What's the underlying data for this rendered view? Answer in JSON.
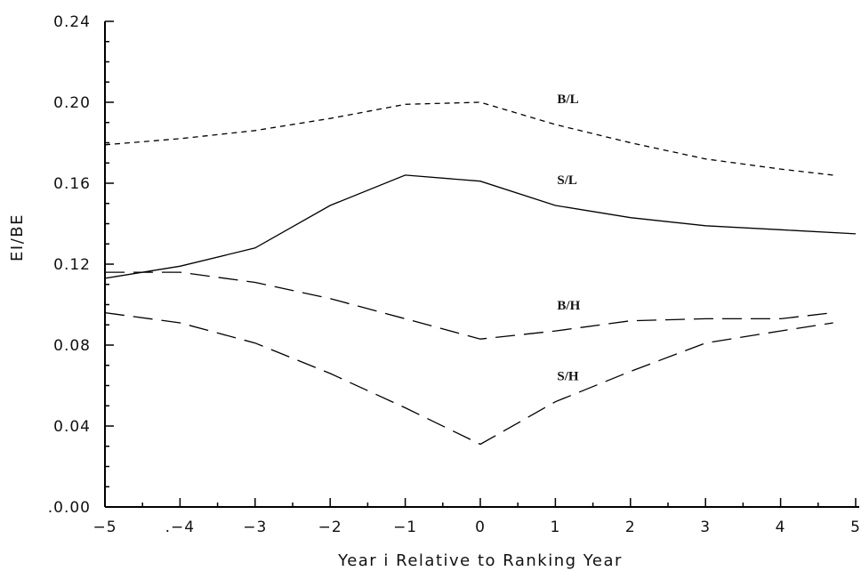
{
  "chart_data": {
    "type": "line",
    "title": "",
    "xlabel": "Year i Relative to Ranking Year",
    "ylabel": "EI/BE",
    "xlim": [
      -5,
      5
    ],
    "ylim": [
      0,
      0.24
    ],
    "xticks": [
      -5,
      -4,
      -3,
      -2,
      -1,
      0,
      1,
      2,
      3,
      4,
      5
    ],
    "xtick_labels": [
      "−5",
      ".−4",
      "−3",
      "−2",
      "−1",
      "0",
      "1",
      "2",
      "3",
      "4",
      "5"
    ],
    "yticks": [
      0,
      0.04,
      0.08,
      0.12,
      0.16,
      0.2,
      0.24
    ],
    "ytick_labels": [
      ".0.00",
      "0.04",
      "0.08",
      "0.12",
      "0.16",
      "0.20",
      "0.24"
    ],
    "grid": false,
    "legend": "none",
    "series": [
      {
        "name": "B/L",
        "style": "short-dash",
        "x": [
          -5,
          -4,
          -3,
          -2,
          -1,
          0,
          1,
          2,
          3,
          4,
          4.7
        ],
        "y": [
          0.179,
          0.182,
          0.186,
          0.192,
          0.199,
          0.2,
          0.189,
          0.18,
          0.172,
          0.167,
          0.164
        ]
      },
      {
        "name": "S/L",
        "style": "solid",
        "x": [
          -5,
          -4,
          -3,
          -2,
          -1,
          0,
          1,
          2,
          3,
          4,
          5
        ],
        "y": [
          0.113,
          0.119,
          0.128,
          0.149,
          0.164,
          0.161,
          0.149,
          0.143,
          0.139,
          0.137,
          0.135
        ]
      },
      {
        "name": "B/H",
        "style": "long-dash",
        "x": [
          -5,
          -4,
          -3,
          -2,
          -1,
          0,
          1,
          2,
          3,
          4,
          4.7
        ],
        "y": [
          0.116,
          0.116,
          0.111,
          0.103,
          0.093,
          0.083,
          0.087,
          0.092,
          0.093,
          0.093,
          0.096
        ]
      },
      {
        "name": "S/H",
        "style": "long-dash",
        "x": [
          -5,
          -4,
          -3,
          -2,
          -1,
          0,
          1,
          2,
          3,
          4,
          4.7
        ],
        "y": [
          0.096,
          0.091,
          0.081,
          0.066,
          0.049,
          0.031,
          0.052,
          0.067,
          0.081,
          0.087,
          0.091
        ]
      }
    ]
  }
}
